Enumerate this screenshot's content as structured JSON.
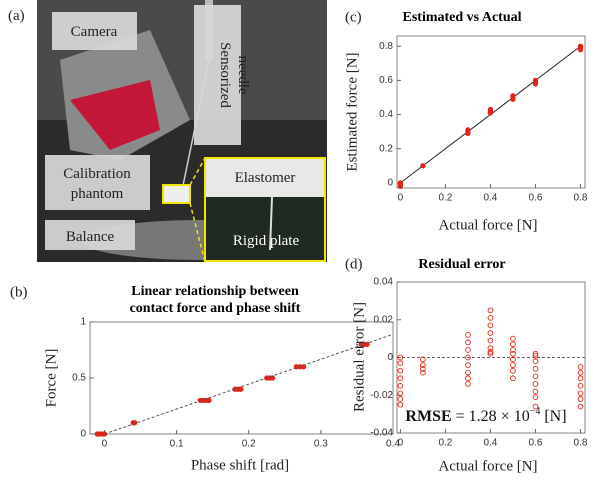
{
  "photo": {
    "panel_label": "(a)",
    "labels": {
      "camera": "Camera",
      "needle": [
        "Sensorized",
        "needle"
      ],
      "phantom": [
        "Calibration",
        "phantom"
      ],
      "balance": "Balance",
      "elastomer": "Elastomer",
      "plate": "Rigid plate"
    }
  },
  "chart_data": [
    {
      "type": "scatter",
      "panel_label": "(b)",
      "title": [
        "Linear relationship between",
        "contact force and phase shift"
      ],
      "x_label": "Phase shift [rad]",
      "y_label": "Force [N]",
      "xlim": [
        -0.02,
        0.4
      ],
      "ylim": [
        0,
        1
      ],
      "xticks": [
        0,
        0.1,
        0.2,
        0.3,
        0.4
      ],
      "yticks": [
        0,
        0.5,
        1
      ],
      "series": [
        {
          "mode": "markers",
          "marker": "filled",
          "color": "#e3241b",
          "x": [
            -0.01,
            -0.007,
            -0.003,
            0,
            0.04,
            0.042,
            0.133,
            0.137,
            0.141,
            0.145,
            0.181,
            0.185,
            0.189,
            0.225,
            0.229,
            0.233,
            0.266,
            0.271,
            0.276,
            0.356,
            0.36,
            0.364
          ],
          "values": [
            0,
            0,
            0,
            0,
            0.1,
            0.1,
            0.3,
            0.3,
            0.3,
            0.3,
            0.4,
            0.4,
            0.4,
            0.5,
            0.5,
            0.5,
            0.6,
            0.6,
            0.6,
            0.8,
            0.8,
            0.8
          ]
        },
        {
          "mode": "line",
          "dash": true,
          "color": "#555555",
          "x": [
            0,
            0.4
          ],
          "values": [
            0,
            0.89
          ]
        }
      ]
    },
    {
      "type": "scatter",
      "panel_label": "(c)",
      "title": [
        "Estimated vs Actual"
      ],
      "x_label": "Actual force [N]",
      "y_label": "Estimated force [N]",
      "xlim": [
        -0.015,
        0.82
      ],
      "ylim": [
        -0.03,
        0.86
      ],
      "xticks": [
        0,
        0.2,
        0.4,
        0.6,
        0.8
      ],
      "yticks": [
        0,
        0.2,
        0.4,
        0.6,
        0.8
      ],
      "series": [
        {
          "mode": "line",
          "dash": false,
          "color": "#222222",
          "x": [
            0,
            0.8
          ],
          "values": [
            0,
            0.8
          ]
        },
        {
          "mode": "markers",
          "marker": "filled",
          "color": "#e3241b",
          "x": [
            0,
            0,
            0,
            0.1,
            0.3,
            0.3,
            0.3,
            0.4,
            0.4,
            0.4,
            0.5,
            0.5,
            0.5,
            0.6,
            0.6,
            0.6,
            0.8,
            0.8,
            0.8
          ],
          "values": [
            -0.02,
            -0.01,
            0,
            0.1,
            0.29,
            0.3,
            0.31,
            0.41,
            0.42,
            0.43,
            0.49,
            0.5,
            0.51,
            0.58,
            0.59,
            0.6,
            0.78,
            0.79,
            0.8
          ]
        }
      ]
    },
    {
      "type": "scatter",
      "panel_label": "(d)",
      "title": [
        "Residual error"
      ],
      "x_label": "Actual force [N]",
      "y_label": "Residual error [N]",
      "xlim": [
        -0.015,
        0.82
      ],
      "ylim": [
        -0.04,
        0.04
      ],
      "xticks": [
        0,
        0.2,
        0.4,
        0.6,
        0.8
      ],
      "yticks": [
        -0.04,
        -0.02,
        0,
        0.02,
        0.04
      ],
      "annotation": [
        "RMSE",
        " = 1.28 × 10",
        "−4",
        " [N]"
      ],
      "series": [
        {
          "mode": "line",
          "dash": true,
          "color": "#666666",
          "x": [
            -0.015,
            0.82
          ],
          "values": [
            0,
            0
          ]
        },
        {
          "mode": "markers",
          "marker": "open",
          "color": "#e3241b",
          "x": [
            0,
            0,
            0,
            0,
            0,
            0,
            0,
            0,
            0.1,
            0.1,
            0.1,
            0.1,
            0.3,
            0.3,
            0.3,
            0.3,
            0.3,
            0.3,
            0.3,
            0.3,
            0.4,
            0.4,
            0.4,
            0.4,
            0.4,
            0.4,
            0.4,
            0.4,
            0.5,
            0.5,
            0.5,
            0.5,
            0.5,
            0.5,
            0.5,
            0.5,
            0.6,
            0.6,
            0.6,
            0.6,
            0.6,
            0.6,
            0.6,
            0.6,
            0.6,
            0.8,
            0.8,
            0.8,
            0.8,
            0.8,
            0.8,
            0.8
          ],
          "values": [
            0,
            -0.003,
            -0.007,
            -0.011,
            -0.015,
            -0.019,
            -0.022,
            -0.025,
            -0.001,
            -0.004,
            -0.006,
            -0.008,
            0.012,
            0.008,
            0.004,
            0,
            -0.004,
            -0.008,
            -0.011,
            -0.014,
            0.025,
            0.021,
            0.017,
            0.013,
            0.009,
            0.005,
            0.003,
            0.002,
            0.01,
            0.007,
            0.004,
            0.002,
            -0.001,
            -0.004,
            -0.007,
            -0.011,
            0.002,
            0.001,
            -0.002,
            -0.006,
            -0.01,
            -0.014,
            -0.018,
            -0.021,
            -0.026,
            -0.005,
            -0.008,
            -0.011,
            -0.015,
            -0.019,
            -0.022,
            -0.026
          ]
        }
      ]
    }
  ]
}
